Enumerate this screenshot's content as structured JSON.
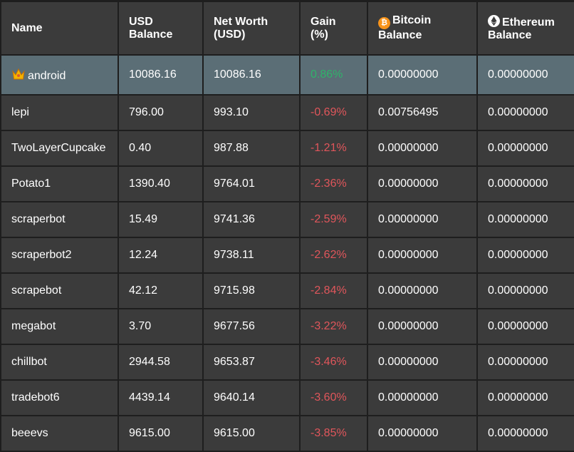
{
  "colors": {
    "background": "#1e1e1e",
    "cell": "#3b3b3b",
    "highlight_row": "#5b6e76",
    "gain_positive": "#2fb36a",
    "gain_negative": "#e0565b",
    "bitcoin": "#f7931a"
  },
  "headers": {
    "name": "Name",
    "usd_balance": "USD Balance",
    "net_worth": "Net Worth (USD)",
    "gain": "Gain (%)",
    "bitcoin_balance": "Bitcoin Balance",
    "ethereum_balance": "Ethereum Balance"
  },
  "icons": {
    "leader": "crown-icon",
    "bitcoin": "bitcoin-icon",
    "ethereum": "ethereum-icon"
  },
  "rows": [
    {
      "name": "android",
      "usd": "10086.16",
      "net_worth": "10086.16",
      "gain": "0.86%",
      "btc": "0.00000000",
      "eth": "0.00000000"
    },
    {
      "name": "lepi",
      "usd": "796.00",
      "net_worth": "993.10",
      "gain": "-0.69%",
      "btc": "0.00756495",
      "eth": "0.00000000"
    },
    {
      "name": "TwoLayerCupcake",
      "usd": "0.40",
      "net_worth": "987.88",
      "gain": "-1.21%",
      "btc": "0.00000000",
      "eth": "0.00000000"
    },
    {
      "name": "Potato1",
      "usd": "1390.40",
      "net_worth": "9764.01",
      "gain": "-2.36%",
      "btc": "0.00000000",
      "eth": "0.00000000"
    },
    {
      "name": "scraperbot",
      "usd": "15.49",
      "net_worth": "9741.36",
      "gain": "-2.59%",
      "btc": "0.00000000",
      "eth": "0.00000000"
    },
    {
      "name": "scraperbot2",
      "usd": "12.24",
      "net_worth": "9738.11",
      "gain": "-2.62%",
      "btc": "0.00000000",
      "eth": "0.00000000"
    },
    {
      "name": "scrapebot",
      "usd": "42.12",
      "net_worth": "9715.98",
      "gain": "-2.84%",
      "btc": "0.00000000",
      "eth": "0.00000000"
    },
    {
      "name": "megabot",
      "usd": "3.70",
      "net_worth": "9677.56",
      "gain": "-3.22%",
      "btc": "0.00000000",
      "eth": "0.00000000"
    },
    {
      "name": "chillbot",
      "usd": "2944.58",
      "net_worth": "9653.87",
      "gain": "-3.46%",
      "btc": "0.00000000",
      "eth": "0.00000000"
    },
    {
      "name": "tradebot6",
      "usd": "4439.14",
      "net_worth": "9640.14",
      "gain": "-3.60%",
      "btc": "0.00000000",
      "eth": "0.00000000"
    },
    {
      "name": "beeevs",
      "usd": "9615.00",
      "net_worth": "9615.00",
      "gain": "-3.85%",
      "btc": "0.00000000",
      "eth": "0.00000000"
    }
  ]
}
